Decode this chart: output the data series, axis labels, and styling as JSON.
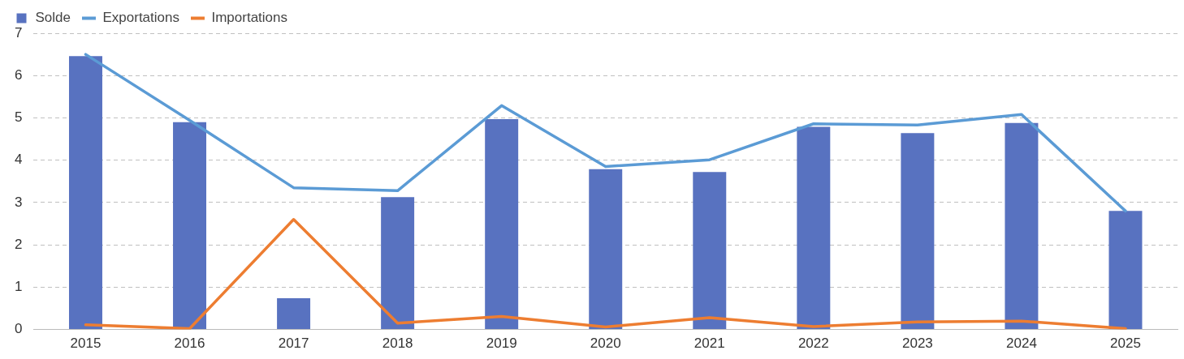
{
  "chart_data": {
    "type": "bar",
    "categories": [
      "2015",
      "2016",
      "2017",
      "2018",
      "2019",
      "2020",
      "2021",
      "2022",
      "2023",
      "2024",
      "2025"
    ],
    "series": [
      {
        "name": "Solde",
        "color": "#5872c0",
        "values": [
          6.46,
          4.9,
          0.74,
          3.13,
          4.97,
          3.79,
          3.72,
          4.79,
          4.64,
          4.88,
          2.8
        ]
      },
      {
        "name": "Exportations",
        "type": "line",
        "color": "#5b9bd5",
        "values": [
          6.5,
          4.94,
          3.35,
          3.28,
          5.29,
          3.85,
          4.01,
          4.86,
          4.83,
          5.08,
          2.8
        ]
      },
      {
        "name": "Importations",
        "type": "line",
        "color": "#ed7d31",
        "values": [
          0.11,
          0.02,
          2.6,
          0.15,
          0.31,
          0.06,
          0.28,
          0.07,
          0.18,
          0.2,
          0.02
        ]
      }
    ],
    "ylim": [
      0,
      7
    ],
    "yticks": [
      0,
      1,
      2,
      3,
      4,
      5,
      6,
      7
    ],
    "grid": "y",
    "legend": "top left"
  }
}
